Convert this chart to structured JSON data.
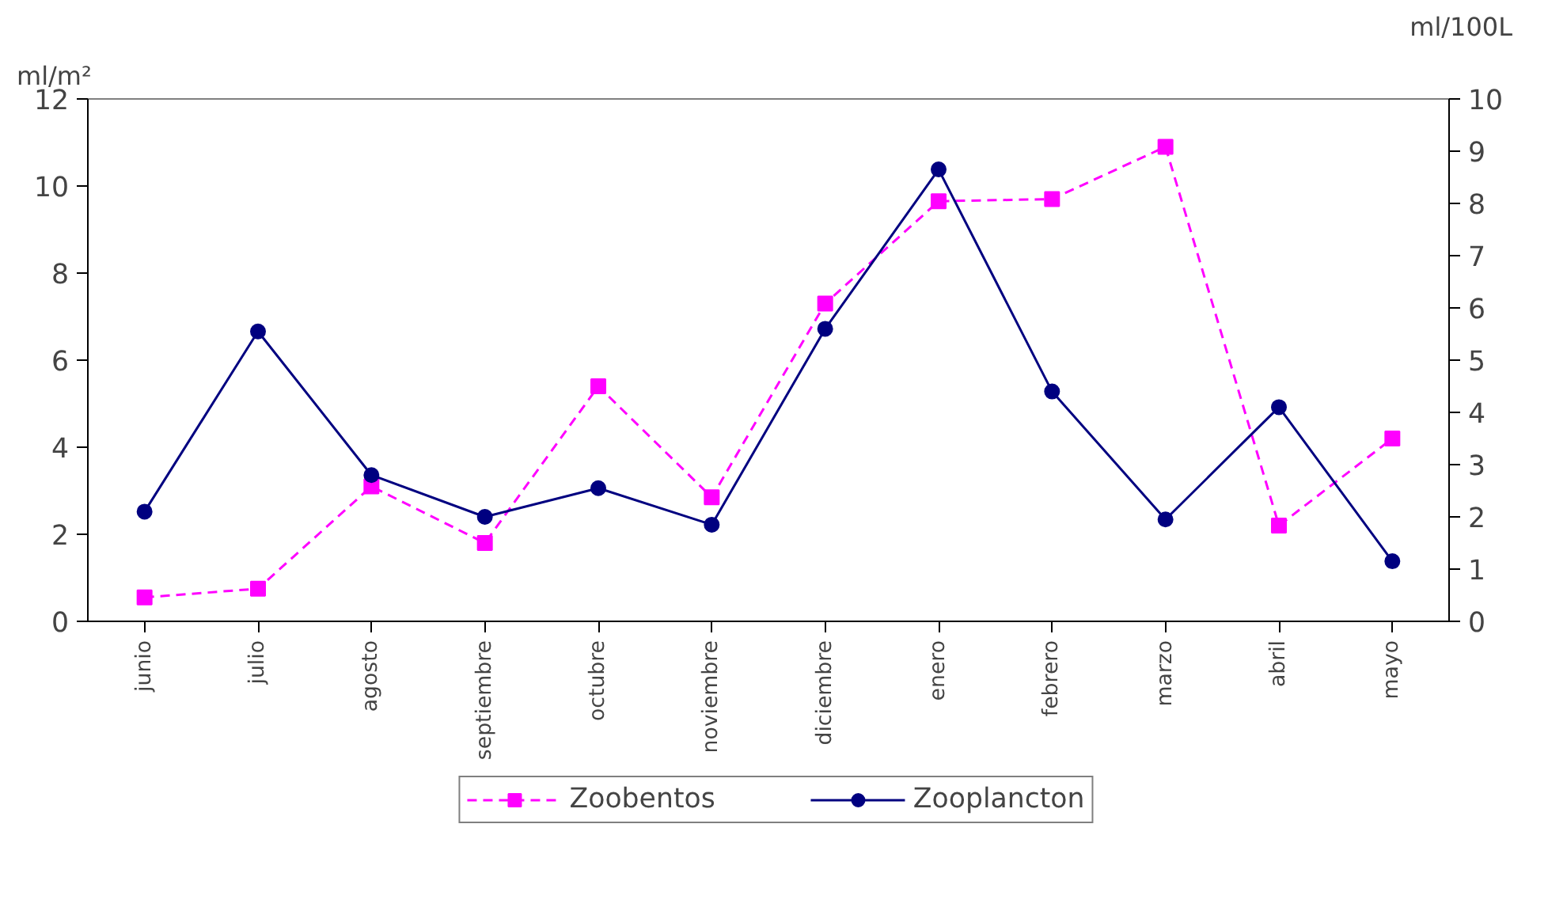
{
  "chart_data": {
    "type": "line",
    "ylabel": "ml/m²",
    "y2label": "ml/100L",
    "categories": [
      "junio",
      "julio",
      "agosto",
      "septiembre",
      "octubre",
      "noviembre",
      "diciembre",
      "enero",
      "febrero",
      "marzo",
      "abril",
      "mayo"
    ],
    "series": [
      {
        "name": "Zoobentos",
        "color": "#ff00ff",
        "marker": "square",
        "line_style": "dashed",
        "values": [
          0.55,
          0.75,
          3.1,
          1.8,
          5.4,
          2.85,
          7.3,
          9.65,
          9.7,
          10.9,
          2.2,
          4.2
        ]
      },
      {
        "name": "Zooplancton",
        "color": "#000080",
        "marker": "circle",
        "line_style": "solid",
        "axis": "y2",
        "values": [
          2.1,
          5.55,
          2.8,
          2.0,
          2.55,
          1.85,
          5.6,
          8.65,
          4.4,
          1.95,
          4.1,
          1.15
        ]
      }
    ],
    "ylim": [
      0,
      12
    ],
    "yticks": [
      0,
      2,
      4,
      6,
      8,
      10,
      12
    ],
    "y2lim": [
      0,
      10
    ],
    "y2ticks": [
      0,
      1,
      2,
      3,
      4,
      5,
      6,
      7,
      8,
      9,
      10
    ],
    "grid": false,
    "legend": "bottom"
  }
}
